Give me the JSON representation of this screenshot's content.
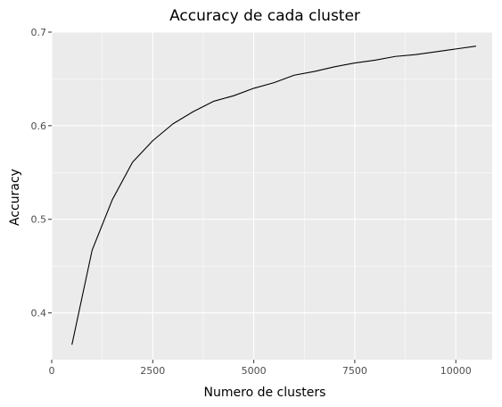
{
  "chart_data": {
    "type": "line",
    "title": "Accuracy de cada cluster",
    "xlabel": "Numero de clusters",
    "ylabel": "Accuracy",
    "xlim": [
      0,
      10900
    ],
    "ylim": [
      0.35,
      0.7
    ],
    "x_ticks": [
      0,
      2500,
      5000,
      7500,
      10000
    ],
    "x_tick_labels": [
      "0",
      "2500",
      "5000",
      "7500",
      "10000"
    ],
    "y_ticks": [
      0.4,
      0.5,
      0.6,
      0.7
    ],
    "y_tick_labels": [
      "0.4",
      "0.5",
      "0.6",
      "0.7"
    ],
    "x": [
      500,
      1000,
      1500,
      2000,
      2500,
      3000,
      3500,
      4000,
      4500,
      5000,
      5500,
      6000,
      6500,
      7000,
      7500,
      8000,
      8500,
      9000,
      9500,
      10000,
      10500
    ],
    "values": [
      0.366,
      0.467,
      0.521,
      0.561,
      0.584,
      0.602,
      0.615,
      0.626,
      0.632,
      0.64,
      0.646,
      0.654,
      0.658,
      0.663,
      0.667,
      0.67,
      0.674,
      0.676,
      0.679,
      0.682,
      0.685
    ],
    "grid": true,
    "colors": {
      "panel": "#ebebeb",
      "grid": "#ffffff",
      "line": "#000000",
      "tick": "#333333"
    }
  }
}
